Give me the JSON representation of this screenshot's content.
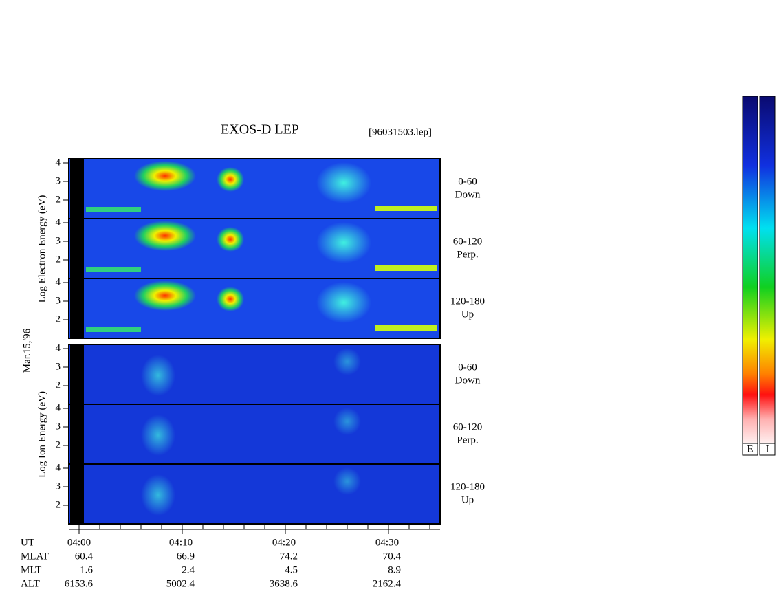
{
  "header": {
    "title": "EXOS-D LEP",
    "file": "[96031503.lep]"
  },
  "date": "Mar.15,'96",
  "electron": {
    "axis_label": "Log Electron Energy (eV)",
    "panels": [
      {
        "ticks": [
          "4",
          "3",
          "2"
        ],
        "angle": "0-60",
        "direction": "Down"
      },
      {
        "ticks": [
          "4",
          "3",
          "2"
        ],
        "angle": "60-120",
        "direction": "Perp."
      },
      {
        "ticks": [
          "4",
          "3",
          "2"
        ],
        "angle": "120-180",
        "direction": "Up"
      }
    ]
  },
  "ion": {
    "axis_label": "Log Ion Energy (eV)",
    "panels": [
      {
        "ticks": [
          "4",
          "3",
          "2"
        ],
        "angle": "0-60",
        "direction": "Down"
      },
      {
        "ticks": [
          "4",
          "3",
          "2"
        ],
        "angle": "60-120",
        "direction": "Perp."
      },
      {
        "ticks": [
          "4",
          "3",
          "2"
        ],
        "angle": "120-180",
        "direction": "Up"
      }
    ]
  },
  "time_axis": {
    "rows": [
      {
        "name": "UT",
        "values": [
          "04:00",
          "04:10",
          "04:20",
          "04:30"
        ]
      },
      {
        "name": "MLAT",
        "values": [
          "60.4",
          "66.9",
          "74.2",
          "70.4"
        ]
      },
      {
        "name": "MLT",
        "values": [
          "1.6",
          "2.4",
          "4.5",
          "8.9"
        ]
      },
      {
        "name": "ALT",
        "values": [
          "6153.6",
          "5002.4",
          "3638.6",
          "2162.4"
        ]
      }
    ]
  },
  "colorbar": {
    "labels": [
      "E",
      "I"
    ]
  }
}
